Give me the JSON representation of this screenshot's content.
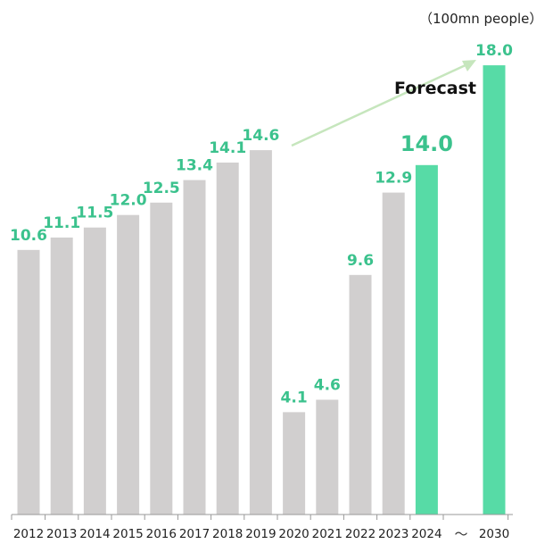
{
  "chart_data": {
    "type": "bar",
    "unit_label": "（100mn people）",
    "annotation": "Forecast",
    "axis_break": "～",
    "categories": [
      "2012",
      "2013",
      "2014",
      "2015",
      "2016",
      "2017",
      "2018",
      "2019",
      "2020",
      "2021",
      "2022",
      "2023",
      "2024",
      "2030"
    ],
    "values": [
      10.6,
      11.1,
      11.5,
      12.0,
      12.5,
      13.4,
      14.1,
      14.6,
      4.1,
      4.6,
      9.6,
      12.9,
      14.0,
      18.0
    ],
    "value_labels": [
      "10.6",
      "11.1",
      "11.5",
      "12.0",
      "12.5",
      "13.4",
      "14.1",
      "14.6",
      "4.1",
      "4.6",
      "9.6",
      "12.9",
      "14.0",
      "18.0"
    ],
    "highlighted": [
      "2024",
      "2030"
    ],
    "ylim": [
      0,
      19.5
    ],
    "grid": false,
    "colors": {
      "actual_bar": "#d1cfcf",
      "forecast_bar": "#57dba6",
      "label": "#3bc28d",
      "arrow": "#c6e6bd",
      "axis": "#999999"
    }
  }
}
